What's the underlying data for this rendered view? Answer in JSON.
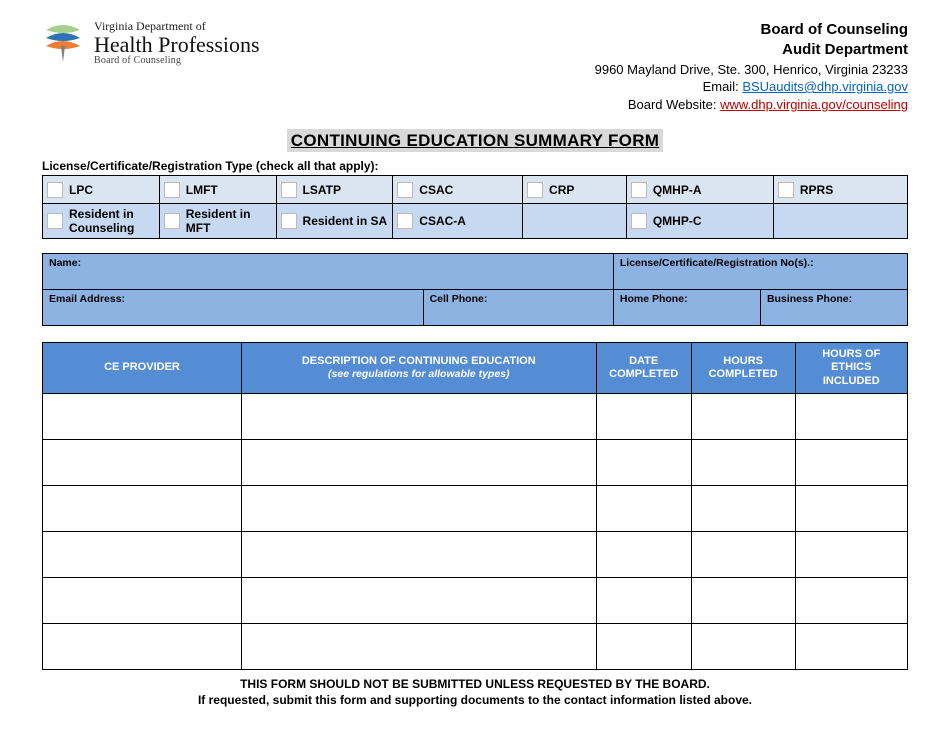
{
  "logo": {
    "line1": "Virginia Department of",
    "line2": "Health Professions",
    "line3": "Board of Counseling",
    "colors": {
      "top": "#a8d08d",
      "mid": "#2e74b5",
      "bot": "#ed7d31",
      "stem": "#7f7f7f"
    }
  },
  "header_right": {
    "org1": "Board of Counseling",
    "org2": "Audit Department",
    "address": "9960 Mayland Drive, Ste. 300, Henrico, Virginia 23233",
    "email_label": "Email:  ",
    "email": "BSUaudits@dhp.virginia.gov",
    "website_label": "Board Website: ",
    "website": "www.dhp.virginia.gov/counseling"
  },
  "title": "CONTINUING EDUCATION SUMMARY FORM",
  "type_section_label": "License/Certificate/Registration Type (check all that apply):",
  "type_rows": [
    [
      "LPC",
      "LMFT",
      "LSATP",
      "CSAC",
      "CRP",
      "QMHP-A",
      "RPRS"
    ],
    [
      "Resident in Counseling",
      "Resident in MFT",
      "Resident in SA",
      "CSAC-A",
      "",
      "QMHP-C",
      ""
    ]
  ],
  "type_col_widths_pct": [
    13.5,
    13.5,
    13.5,
    15,
    12,
    17,
    15.5
  ],
  "type_row_colors": [
    "#dbe5f1",
    "#c6d9f1"
  ],
  "info_rows": [
    [
      {
        "label": "Name:",
        "colspan": 3
      },
      {
        "label": "License/Certificate/Registration No(s).:",
        "colspan": 2
      }
    ],
    [
      {
        "label": "Email Address:",
        "colspan": 2
      },
      {
        "label": "Cell Phone:",
        "colspan": 1
      },
      {
        "label": "Home Phone:",
        "colspan": 1
      },
      {
        "label": "Business Phone:",
        "colspan": 1
      }
    ]
  ],
  "info_col_widths_pct": [
    22,
    22,
    22,
    17,
    17
  ],
  "info_bg": "#8db3e2",
  "ce_table": {
    "header_bg": "#548dd4",
    "header_fg": "#ffffff",
    "columns": [
      {
        "label": "CE PROVIDER",
        "width_pct": 23
      },
      {
        "label": "DESCRIPTION OF CONTINUING EDUCATION",
        "sub": "(see regulations for allowable types)",
        "width_pct": 41
      },
      {
        "label": "DATE COMPLETED",
        "width_pct": 11
      },
      {
        "label": "HOURS COMPLETED",
        "width_pct": 12
      },
      {
        "label": "HOURS OF ETHICS INCLUDED",
        "width_pct": 13
      }
    ],
    "num_rows": 6
  },
  "footer": {
    "line1": "THIS FORM SHOULD NOT BE SUBMITTED UNLESS REQUESTED BY THE BOARD.",
    "line2": "If requested, submit this form and supporting documents to the contact information listed above."
  }
}
